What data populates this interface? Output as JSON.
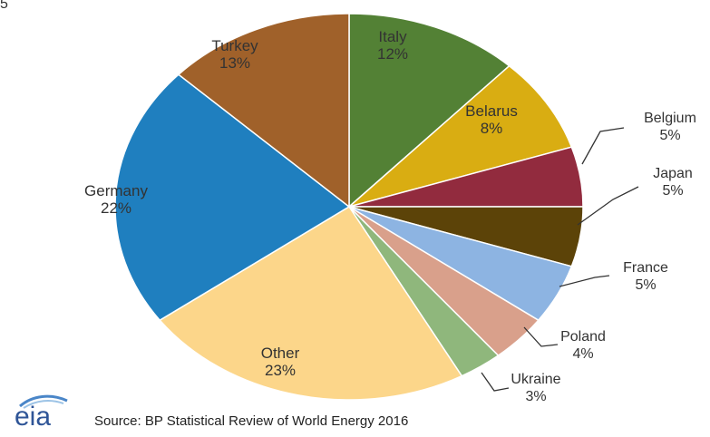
{
  "corner_text": "5",
  "footer": {
    "logo_text": "eia",
    "source": "Source: BP Statistical Review of World Energy 2016"
  },
  "chart_data": {
    "type": "pie",
    "title": "",
    "start_angle_deg": 90,
    "direction": "clockwise",
    "unit": "%",
    "slices": [
      {
        "label": "Italy",
        "value": 12,
        "color": "#538135",
        "label_pos": "inside"
      },
      {
        "label": "Belarus",
        "value": 8,
        "color": "#d9ad12",
        "label_pos": "inside"
      },
      {
        "label": "Belgium",
        "value": 5,
        "color": "#922b3e",
        "label_pos": "outside"
      },
      {
        "label": "Japan",
        "value": 5,
        "color": "#5c4308",
        "label_pos": "outside"
      },
      {
        "label": "France",
        "value": 5,
        "color": "#8db4e2",
        "label_pos": "outside"
      },
      {
        "label": "Poland",
        "value": 4,
        "color": "#d9a08b",
        "label_pos": "outside"
      },
      {
        "label": "Ukraine",
        "value": 3,
        "color": "#8fb77c",
        "label_pos": "outside"
      },
      {
        "label": "Other",
        "value": 23,
        "color": "#fcd68a",
        "label_pos": "inside"
      },
      {
        "label": "Germany",
        "value": 22,
        "color": "#1f7fbf",
        "label_pos": "inside"
      },
      {
        "label": "Turkey",
        "value": 13,
        "color": "#a0612a",
        "label_pos": "inside"
      }
    ]
  }
}
